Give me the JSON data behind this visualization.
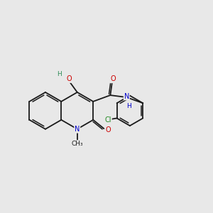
{
  "background_color": "#e8e8e8",
  "bond_color": "#1a1a1a",
  "atom_colors": {
    "O": "#cc0000",
    "N": "#0000cc",
    "H_on_O": "#2e8b57",
    "H_on_N": "#0000cc",
    "Cl": "#228B22"
  },
  "lw": 1.3,
  "fs": 7.0,
  "xlim": [
    0.5,
    10.5
  ],
  "ylim": [
    3.0,
    9.0
  ],
  "R_quin": 0.88,
  "R_cbenz": 0.72,
  "nc_x": 4.1,
  "nc_y": 5.8
}
